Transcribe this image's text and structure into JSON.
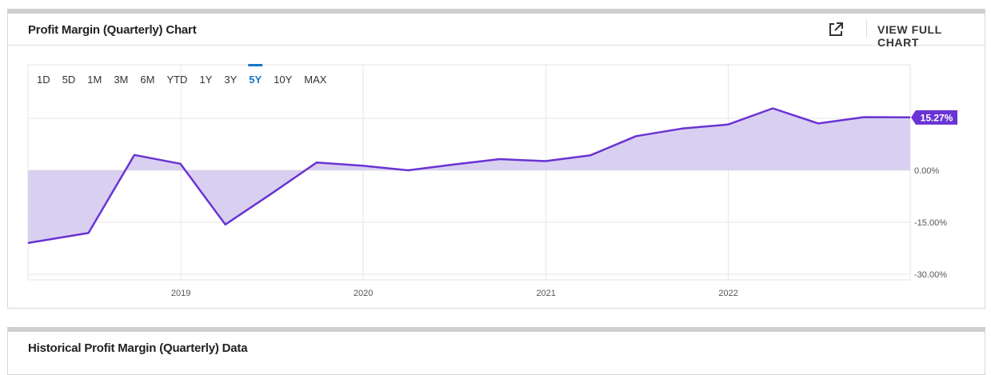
{
  "chart_card": {
    "title": "Profit Margin (Quarterly) Chart",
    "view_full_label": "VIEW FULL CHART",
    "external_link_icon": "external-link-icon"
  },
  "range_buttons": [
    "1D",
    "5D",
    "1M",
    "3M",
    "6M",
    "YTD",
    "1Y",
    "3Y",
    "5Y",
    "10Y",
    "MAX"
  ],
  "active_range": "5Y",
  "data_card": {
    "title": "Historical Profit Margin (Quarterly) Data"
  },
  "colors": {
    "line": "#6a33d4",
    "fill": "#d7cdf0",
    "active": "#1a73c8",
    "badge": "#6a33d4"
  },
  "chart_data": {
    "type": "area",
    "series": [
      {
        "x": [
          "2018-03-31",
          "2018-06-30",
          "2018-09-30",
          "2018-12-31",
          "2019-03-31",
          "2019-06-30",
          "2019-09-30",
          "2019-12-31",
          "2020-03-31",
          "2020-06-30",
          "2020-09-30",
          "2020-12-31",
          "2021-03-31",
          "2021-06-30",
          "2021-09-30",
          "2021-12-31",
          "2022-03-31",
          "2022-06-30",
          "2022-09-30",
          "2022-12-31"
        ],
        "values": [
          -20.98,
          -18.1,
          4.43,
          1.89,
          -15.64,
          -6.88,
          2.26,
          1.33,
          0.0,
          1.66,
          3.24,
          2.66,
          4.35,
          9.85,
          12.05,
          13.2,
          17.89,
          13.53,
          15.34,
          15.27
        ]
      }
    ],
    "last_value_label": "15.27%",
    "y_ticks": [
      15,
      0,
      -15,
      -30
    ],
    "y_tick_labels": [
      "15.00%",
      "0.00%",
      "-15.00%",
      "-30.00%"
    ],
    "x_tick_labels": [
      "2019",
      "2020",
      "2021",
      "2022"
    ],
    "x_tick_dates": [
      "2019-01-01",
      "2020-01-01",
      "2021-01-01",
      "2022-01-01"
    ],
    "ylim": [
      -30,
      15
    ],
    "xlim": [
      "2018-03-01",
      "2022-12-31"
    ],
    "grid": true,
    "title": "",
    "xlabel": "",
    "ylabel": ""
  }
}
